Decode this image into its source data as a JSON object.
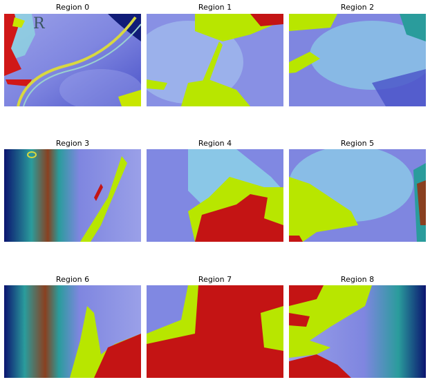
{
  "figure": {
    "panels": [
      {
        "title": "Region 0"
      },
      {
        "title": "Region 1"
      },
      {
        "title": "Region 2"
      },
      {
        "title": "Region 3"
      },
      {
        "title": "Region 4"
      },
      {
        "title": "Region 5"
      },
      {
        "title": "Region 6"
      },
      {
        "title": "Region 7"
      },
      {
        "title": "Region 8"
      }
    ],
    "marker_letter": "R",
    "colors": {
      "base_blue": "#7f86e0",
      "light_cyan": "#8fe3ea",
      "yellow_green": "#b8e600",
      "red": "#c41414",
      "dark_navy": "#0b1470",
      "teal": "#2a9c9c"
    }
  }
}
